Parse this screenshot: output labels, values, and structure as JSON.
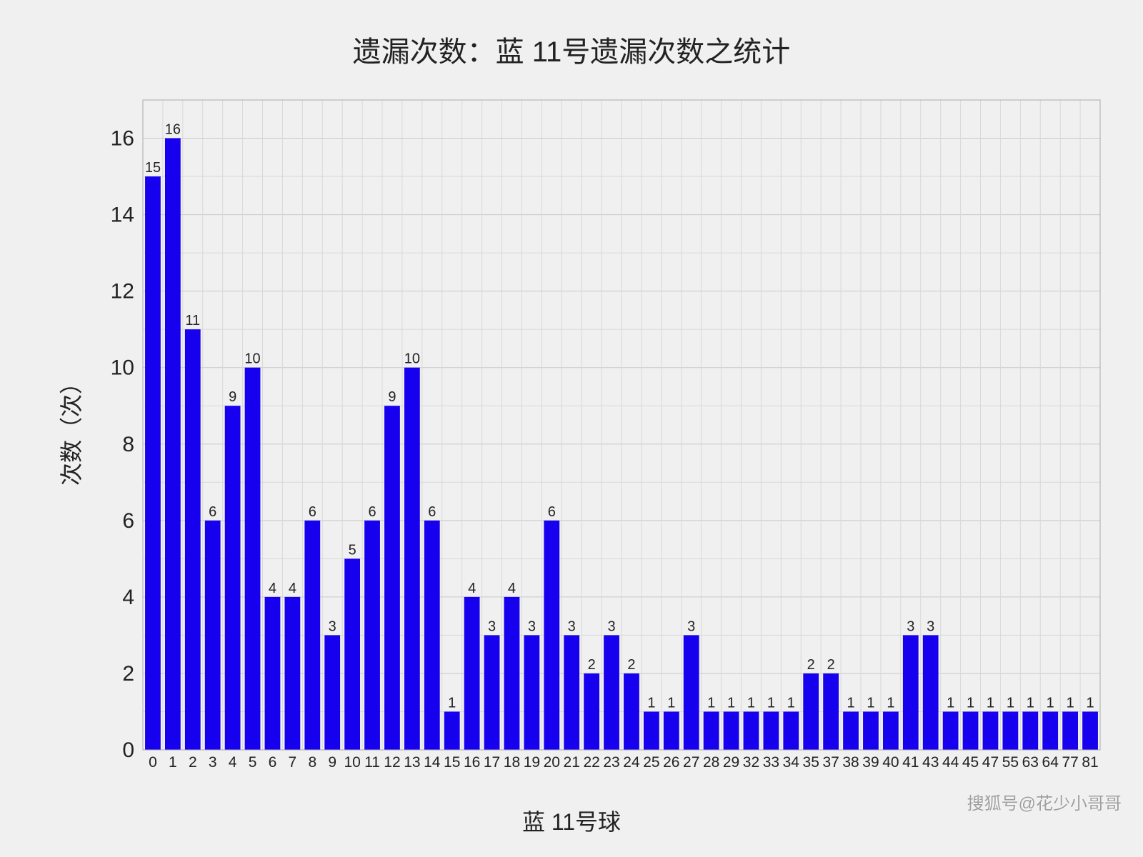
{
  "chart": {
    "type": "bar",
    "title": "遗漏次数：蓝 11号遗漏次数之统计",
    "title_fontsize": 40,
    "xlabel": "蓝 11号球",
    "ylabel": "次数（次）",
    "label_fontsize": 32,
    "background_color": "#f0f0f0",
    "bar_color": "#1600ee",
    "grid_minor_color": "#d8d8d8",
    "grid_major_color": "#c8c8c8",
    "ylim": [
      0,
      17
    ],
    "ytick_values": [
      0,
      2,
      4,
      6,
      8,
      10,
      12,
      14,
      16
    ],
    "bar_width_ratio": 0.78,
    "categories": [
      "0",
      "1",
      "2",
      "3",
      "4",
      "5",
      "6",
      "7",
      "8",
      "9",
      "10",
      "11",
      "12",
      "13",
      "14",
      "15",
      "16",
      "17",
      "18",
      "19",
      "20",
      "21",
      "22",
      "23",
      "24",
      "25",
      "26",
      "27",
      "28",
      "29",
      "32",
      "33",
      "34",
      "35",
      "37",
      "38",
      "39",
      "40",
      "41",
      "43",
      "44",
      "45",
      "47",
      "55",
      "63",
      "64",
      "77",
      "81"
    ],
    "values": [
      15,
      16,
      11,
      6,
      9,
      10,
      4,
      4,
      6,
      3,
      5,
      6,
      9,
      10,
      6,
      1,
      4,
      3,
      4,
      3,
      6,
      3,
      2,
      3,
      2,
      1,
      1,
      3,
      1,
      1,
      1,
      1,
      1,
      2,
      2,
      1,
      1,
      1,
      3,
      3,
      1,
      1,
      1,
      1,
      1,
      1,
      1,
      1
    ],
    "value_label_fontsize": 20,
    "xtick_fontsize": 21,
    "ytick_fontsize": 30
  },
  "watermark": "搜狐号@花少小哥哥"
}
